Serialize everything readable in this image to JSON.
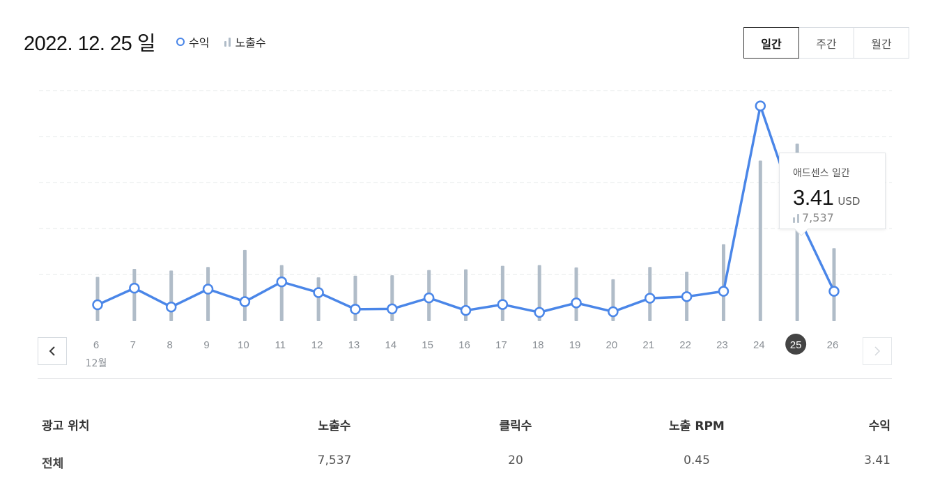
{
  "header": {
    "title": "2022. 12. 25 일",
    "legend": {
      "revenue_label": "수익",
      "impressions_label": "노출수"
    }
  },
  "period_tabs": [
    {
      "label": "일간",
      "active": true
    },
    {
      "label": "주간",
      "active": false
    },
    {
      "label": "월간",
      "active": false
    }
  ],
  "colors": {
    "line": "#4a86e8",
    "bar": "#b0bcc8",
    "grid": "#e6e8ea",
    "selected_day_bg": "#444444"
  },
  "chart_data": {
    "type": "line",
    "x": [
      "6",
      "7",
      "8",
      "9",
      "10",
      "11",
      "12",
      "13",
      "14",
      "15",
      "16",
      "17",
      "18",
      "19",
      "20",
      "21",
      "22",
      "23",
      "24",
      "25",
      "26"
    ],
    "month_label": "12월",
    "selected_index": 19,
    "series": [
      {
        "name": "수익",
        "kind": "line",
        "values": [
          0.52,
          1.05,
          0.45,
          1.02,
          0.62,
          1.25,
          0.91,
          0.38,
          0.39,
          0.74,
          0.34,
          0.53,
          0.28,
          0.58,
          0.3,
          0.73,
          0.78,
          0.95,
          6.85,
          3.41,
          0.95
        ]
      },
      {
        "name": "노출수",
        "kind": "bar",
        "values": [
          1880,
          2220,
          2150,
          2300,
          3020,
          2380,
          1860,
          1930,
          1950,
          2170,
          2200,
          2350,
          2380,
          2280,
          1780,
          2300,
          2100,
          3270,
          6820,
          7537,
          3100
        ]
      }
    ],
    "grid": true
  },
  "tooltip": {
    "title": "애드센스 일간",
    "value": "3.41",
    "unit": "USD",
    "impressions": "7,537"
  },
  "nav": {
    "prev_icon": "chevron-left-icon",
    "next_icon": "chevron-right-icon"
  },
  "summary": {
    "headers": [
      "광고 위치",
      "노출수",
      "클릭수",
      "노출 RPM",
      "수익"
    ],
    "rows": [
      [
        "전체",
        "7,537",
        "20",
        "0.45",
        "3.41"
      ]
    ]
  }
}
